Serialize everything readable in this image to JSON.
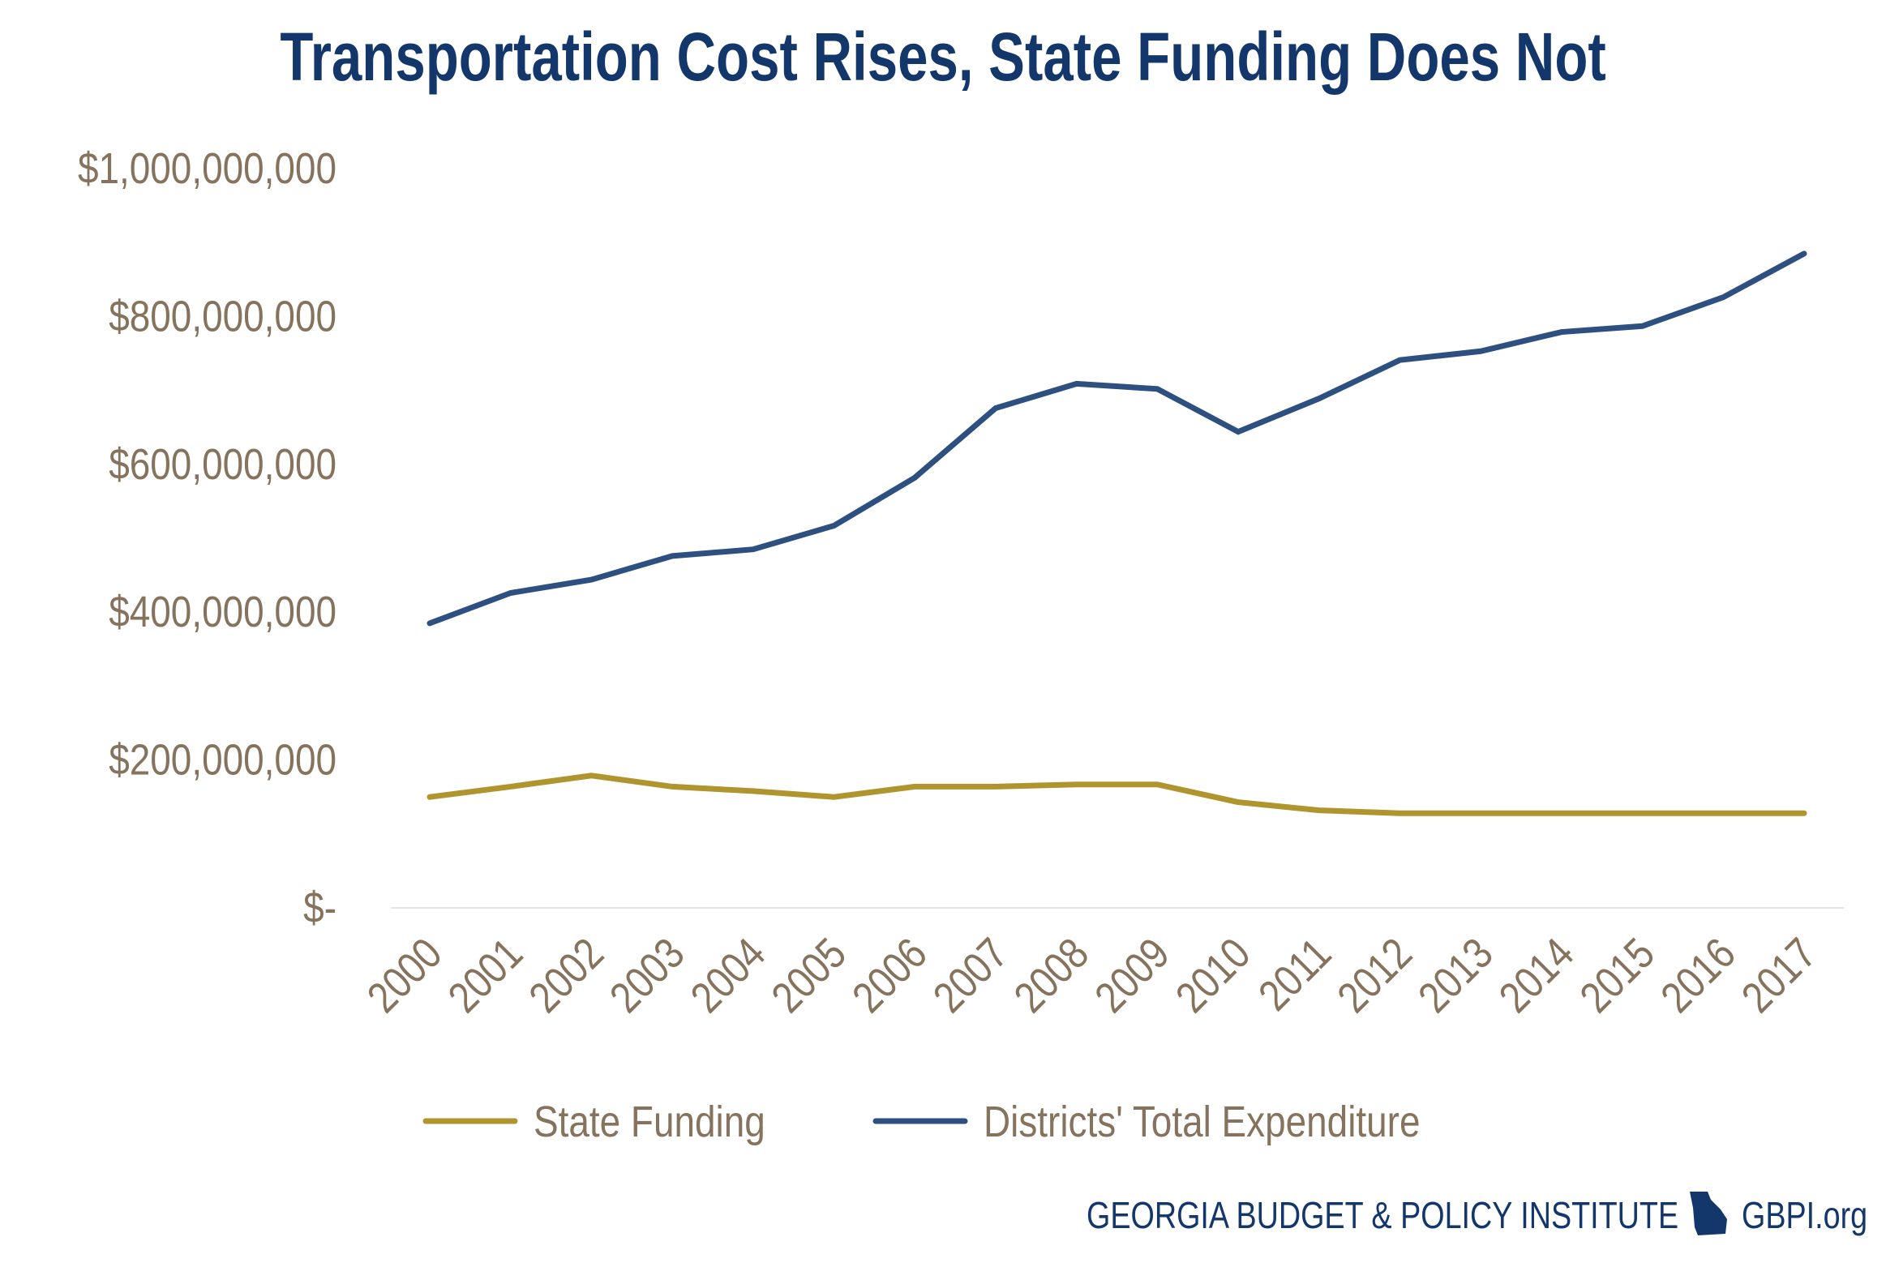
{
  "chart_data": {
    "type": "line",
    "title": "Transportation Cost Rises, State Funding Does Not",
    "xlabel": "",
    "ylabel": "",
    "ylim": [
      0,
      1000000000
    ],
    "yticks": [
      0,
      200000000,
      400000000,
      600000000,
      800000000,
      1000000000
    ],
    "ytick_labels": [
      "$-",
      "$200,000,000",
      "$400,000,000",
      "$600,000,000",
      "$800,000,000",
      "$1,000,000,000"
    ],
    "categories": [
      "2000",
      "2001",
      "2002",
      "2003",
      "2004",
      "2005",
      "2006",
      "2007",
      "2008",
      "2009",
      "2010",
      "2011",
      "2012",
      "2013",
      "2014",
      "2015",
      "2016",
      "2017"
    ],
    "grid": false,
    "legend_position": "bottom",
    "series": [
      {
        "name": "State Funding",
        "color": "#b0952f",
        "values": [
          150000000,
          164000000,
          179000000,
          164000000,
          158000000,
          150000000,
          164000000,
          164000000,
          167000000,
          167000000,
          143000000,
          132000000,
          128000000,
          128000000,
          128000000,
          128000000,
          128000000,
          128000000
        ]
      },
      {
        "name": "Districts' Total Expenditure",
        "color": "#2e5080",
        "values": [
          385000000,
          426000000,
          444000000,
          476000000,
          485000000,
          517000000,
          582000000,
          676000000,
          709000000,
          702000000,
          644000000,
          689000000,
          741000000,
          753000000,
          779000000,
          787000000,
          826000000,
          885000000
        ]
      }
    ]
  },
  "footer": {
    "org": "GEORGIA BUDGET & POLICY INSTITUTE",
    "site": "GBPI.org",
    "logo_icon": "georgia-state-icon",
    "color": "#14376b"
  }
}
